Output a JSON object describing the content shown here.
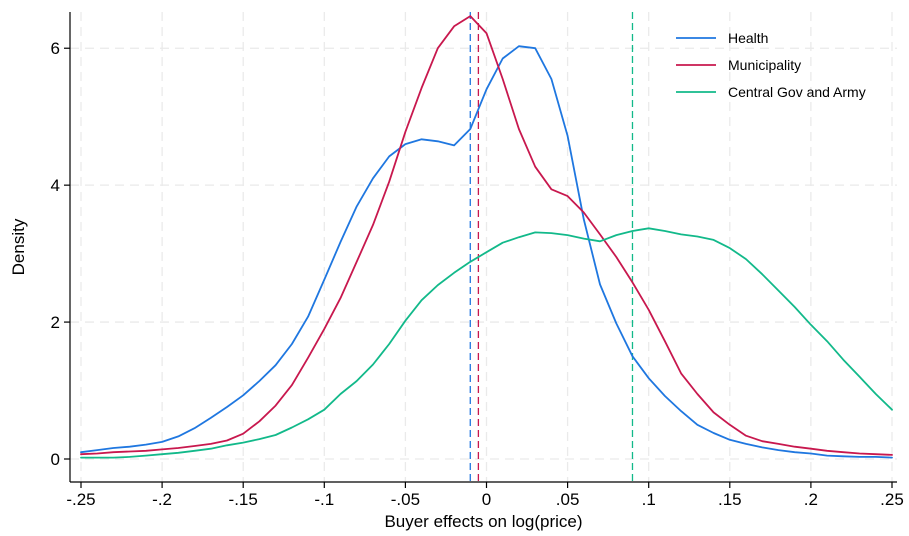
{
  "chart_data": {
    "type": "line",
    "xlabel": "Buyer effects on log(price)",
    "ylabel": "Density",
    "xlim": [
      -0.25,
      0.25
    ],
    "ylim": [
      0,
      6.5
    ],
    "x_ticks": [
      -0.25,
      -0.2,
      -0.15,
      -0.1,
      -0.05,
      0,
      0.05,
      0.1,
      0.15,
      0.2,
      0.25
    ],
    "x_tick_labels": [
      "-.25",
      "-.2",
      "-.15",
      "-.1",
      "-.05",
      "0",
      ".05",
      ".1",
      ".15",
      ".2",
      ".25"
    ],
    "y_ticks": [
      0,
      2,
      4,
      6
    ],
    "y_tick_labels": [
      "0",
      "2",
      "4",
      "6"
    ],
    "grid": true,
    "legend_position": "top-right",
    "series": [
      {
        "name": "Health",
        "color": "#1f77e0",
        "mean_line": -0.01,
        "x": [
          -0.25,
          -0.24,
          -0.23,
          -0.22,
          -0.21,
          -0.2,
          -0.19,
          -0.18,
          -0.17,
          -0.16,
          -0.15,
          -0.14,
          -0.13,
          -0.12,
          -0.11,
          -0.1,
          -0.09,
          -0.08,
          -0.07,
          -0.06,
          -0.05,
          -0.04,
          -0.03,
          -0.02,
          -0.01,
          0.0,
          0.01,
          0.02,
          0.03,
          0.04,
          0.05,
          0.06,
          0.07,
          0.08,
          0.09,
          0.1,
          0.11,
          0.12,
          0.13,
          0.14,
          0.15,
          0.16,
          0.17,
          0.18,
          0.19,
          0.2,
          0.21,
          0.22,
          0.23,
          0.24,
          0.25
        ],
        "y": [
          0.1,
          0.13,
          0.16,
          0.18,
          0.21,
          0.25,
          0.33,
          0.45,
          0.6,
          0.76,
          0.93,
          1.14,
          1.37,
          1.68,
          2.08,
          2.62,
          3.17,
          3.69,
          4.1,
          4.42,
          4.6,
          4.67,
          4.64,
          4.58,
          4.82,
          5.4,
          5.85,
          6.03,
          6.0,
          5.55,
          4.72,
          3.5,
          2.55,
          1.98,
          1.5,
          1.18,
          0.92,
          0.7,
          0.5,
          0.38,
          0.28,
          0.22,
          0.17,
          0.13,
          0.1,
          0.08,
          0.05,
          0.04,
          0.03,
          0.03,
          0.02
        ]
      },
      {
        "name": "Municipality",
        "color": "#c8184e",
        "mean_line": -0.005,
        "x": [
          -0.25,
          -0.24,
          -0.23,
          -0.22,
          -0.21,
          -0.2,
          -0.19,
          -0.18,
          -0.17,
          -0.16,
          -0.15,
          -0.14,
          -0.13,
          -0.12,
          -0.11,
          -0.1,
          -0.09,
          -0.08,
          -0.07,
          -0.06,
          -0.05,
          -0.04,
          -0.03,
          -0.02,
          -0.01,
          0.0,
          0.01,
          0.02,
          0.03,
          0.04,
          0.05,
          0.06,
          0.07,
          0.08,
          0.09,
          0.1,
          0.11,
          0.12,
          0.13,
          0.14,
          0.15,
          0.16,
          0.17,
          0.18,
          0.19,
          0.2,
          0.21,
          0.22,
          0.23,
          0.24,
          0.25
        ],
        "y": [
          0.07,
          0.08,
          0.1,
          0.11,
          0.12,
          0.14,
          0.16,
          0.19,
          0.22,
          0.27,
          0.37,
          0.55,
          0.78,
          1.08,
          1.48,
          1.9,
          2.35,
          2.88,
          3.42,
          4.05,
          4.78,
          5.42,
          6.0,
          6.32,
          6.47,
          6.22,
          5.55,
          4.82,
          4.27,
          3.94,
          3.84,
          3.6,
          3.28,
          2.95,
          2.58,
          2.18,
          1.72,
          1.25,
          0.95,
          0.68,
          0.5,
          0.34,
          0.26,
          0.22,
          0.18,
          0.15,
          0.12,
          0.1,
          0.08,
          0.07,
          0.06
        ]
      },
      {
        "name": "Central Gov and Army",
        "color": "#12b98a",
        "mean_line": 0.09,
        "x": [
          -0.25,
          -0.24,
          -0.23,
          -0.22,
          -0.21,
          -0.2,
          -0.19,
          -0.18,
          -0.17,
          -0.16,
          -0.15,
          -0.14,
          -0.13,
          -0.12,
          -0.11,
          -0.1,
          -0.09,
          -0.08,
          -0.07,
          -0.06,
          -0.05,
          -0.04,
          -0.03,
          -0.02,
          -0.01,
          0.0,
          0.01,
          0.02,
          0.03,
          0.04,
          0.05,
          0.06,
          0.07,
          0.08,
          0.09,
          0.1,
          0.11,
          0.12,
          0.13,
          0.14,
          0.15,
          0.16,
          0.17,
          0.18,
          0.19,
          0.2,
          0.21,
          0.22,
          0.23,
          0.24,
          0.25
        ],
        "y": [
          0.02,
          0.02,
          0.02,
          0.03,
          0.05,
          0.07,
          0.09,
          0.12,
          0.15,
          0.2,
          0.24,
          0.29,
          0.35,
          0.46,
          0.58,
          0.72,
          0.95,
          1.14,
          1.38,
          1.68,
          2.02,
          2.32,
          2.54,
          2.72,
          2.88,
          3.02,
          3.16,
          3.24,
          3.31,
          3.3,
          3.27,
          3.22,
          3.18,
          3.27,
          3.33,
          3.37,
          3.33,
          3.28,
          3.25,
          3.2,
          3.08,
          2.92,
          2.7,
          2.46,
          2.22,
          1.96,
          1.72,
          1.45,
          1.2,
          0.95,
          0.72
        ]
      }
    ]
  }
}
